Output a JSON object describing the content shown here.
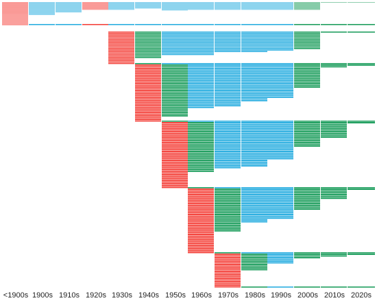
{
  "chart_data": {
    "type": "heatmap",
    "categories": [
      "<1900s",
      "1900s",
      "1910s",
      "1920s",
      "1930s",
      "1940s",
      "1950s",
      "1960s",
      "1970s",
      "1980s",
      "1990s",
      "2000s",
      "2010s",
      "2020s"
    ],
    "colors": {
      "diagonal": "#f4433c",
      "mid": "#2aaee0",
      "late": "#1e9e5e",
      "divider": "#ffffff"
    },
    "legend": "none",
    "grid": false,
    "blocks": [
      {
        "cohort": "<1900s",
        "rows": 35,
        "rowsByDecade": [
          35,
          20,
          16,
          12,
          12,
          10,
          13,
          12,
          12,
          12,
          12,
          12,
          1,
          1
        ]
      },
      {
        "cohort": "1930s",
        "rows": 22,
        "rowsByDecade": [
          0,
          0,
          0,
          0,
          22,
          18,
          16,
          16,
          14,
          14,
          13,
          12,
          1,
          1
        ]
      },
      {
        "cohort": "1940s",
        "rows": 34,
        "rowsByDecade": [
          0,
          0,
          0,
          0,
          0,
          34,
          31,
          26,
          25,
          22,
          20,
          14,
          2,
          1
        ]
      },
      {
        "cohort": "1950s",
        "rows": 37,
        "rowsByDecade": [
          0,
          0,
          0,
          0,
          0,
          0,
          37,
          28,
          26,
          25,
          21,
          14,
          9,
          1
        ]
      },
      {
        "cohort": "1960s",
        "rows": 36,
        "rowsByDecade": [
          0,
          0,
          0,
          0,
          0,
          0,
          0,
          36,
          24,
          19,
          17,
          12,
          6,
          1
        ]
      },
      {
        "cohort": "1970s",
        "rows": 20,
        "rowsByDecade": [
          0,
          0,
          0,
          0,
          0,
          0,
          0,
          0,
          20,
          10,
          6,
          3,
          2,
          1
        ]
      }
    ]
  }
}
